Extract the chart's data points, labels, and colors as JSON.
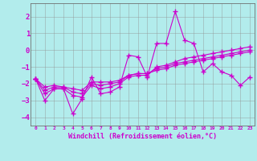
{
  "xlabel": "Windchill (Refroidissement éolien,°C)",
  "bg_color": "#b2ecec",
  "grid_color": "#909090",
  "line_color": "#cc00cc",
  "x_hours": [
    0,
    1,
    2,
    3,
    4,
    5,
    6,
    7,
    8,
    9,
    10,
    11,
    12,
    13,
    14,
    15,
    16,
    17,
    18,
    19,
    20,
    21,
    22,
    23
  ],
  "series": [
    [
      -1.7,
      -3.0,
      -2.3,
      -2.3,
      -3.8,
      -2.9,
      -1.6,
      -2.6,
      -2.5,
      -2.2,
      -0.3,
      -0.4,
      -1.6,
      0.4,
      0.4,
      2.3,
      0.6,
      0.4,
      -1.3,
      -0.8,
      -1.3,
      -1.5,
      -2.1,
      -1.6
    ],
    [
      -1.7,
      -2.2,
      -2.1,
      -2.2,
      -2.3,
      -2.4,
      -1.9,
      -1.9,
      -1.9,
      -1.8,
      -1.5,
      -1.4,
      -1.4,
      -1.2,
      -1.1,
      -0.9,
      -0.8,
      -0.7,
      -0.6,
      -0.5,
      -0.4,
      -0.3,
      -0.2,
      -0.1
    ],
    [
      -1.7,
      -2.4,
      -2.2,
      -2.2,
      -2.5,
      -2.6,
      -2.0,
      -2.1,
      -2.0,
      -1.9,
      -1.5,
      -1.4,
      -1.4,
      -1.1,
      -1.0,
      -0.8,
      -0.7,
      -0.6,
      -0.5,
      -0.4,
      -0.3,
      -0.2,
      -0.1,
      0.0
    ],
    [
      -1.7,
      -2.6,
      -2.3,
      -2.3,
      -2.7,
      -2.8,
      -2.1,
      -2.3,
      -2.2,
      -2.0,
      -1.6,
      -1.5,
      -1.5,
      -1.0,
      -0.9,
      -0.7,
      -0.5,
      -0.4,
      -0.3,
      -0.2,
      -0.1,
      0.0,
      0.1,
      0.2
    ]
  ],
  "ylim": [
    -4.5,
    2.8
  ],
  "yticks": [
    -4,
    -3,
    -2,
    -1,
    0,
    1,
    2
  ],
  "xlim": [
    -0.5,
    23.5
  ],
  "figsize": [
    3.2,
    2.0
  ],
  "dpi": 100
}
